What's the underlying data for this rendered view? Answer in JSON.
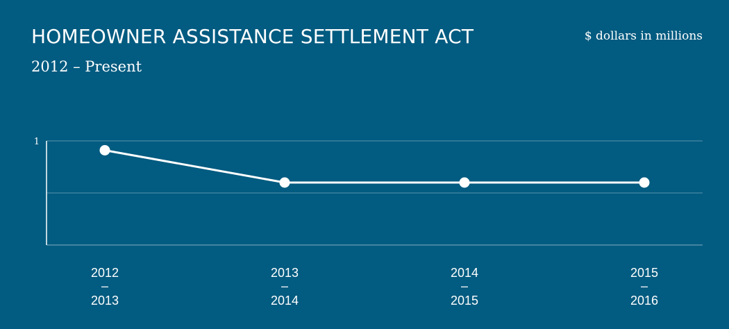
{
  "header": {
    "title": "HOMEOWNER ASSISTANCE SETTLEMENT ACT",
    "subtitle": "2012 – Present",
    "units": "$ dollars in millions"
  },
  "colors": {
    "background": "#025B80",
    "line": "#ffffff",
    "gridline": "#5B93AE",
    "axis": "#ffffff",
    "text": "#ffffff"
  },
  "chart_data": {
    "type": "line",
    "title": "HOMEOWNER ASSISTANCE SETTLEMENT ACT",
    "subtitle": "2012 – Present",
    "units": "$ dollars in millions",
    "xlabel": "",
    "ylabel": "",
    "categories": [
      [
        "2012",
        "–",
        "2013"
      ],
      [
        "2013",
        "–",
        "2014"
      ],
      [
        "2014",
        "–",
        "2015"
      ],
      [
        "2015",
        "–",
        "2016"
      ]
    ],
    "series": [
      {
        "values": [
          0.91,
          0.6,
          0.6,
          0.6
        ]
      }
    ],
    "ylim": [
      0,
      1
    ],
    "yticks": [
      {
        "value": 1,
        "label": "1"
      }
    ],
    "gridlines": [
      0.5,
      1
    ],
    "grid": true,
    "legend": "none"
  }
}
